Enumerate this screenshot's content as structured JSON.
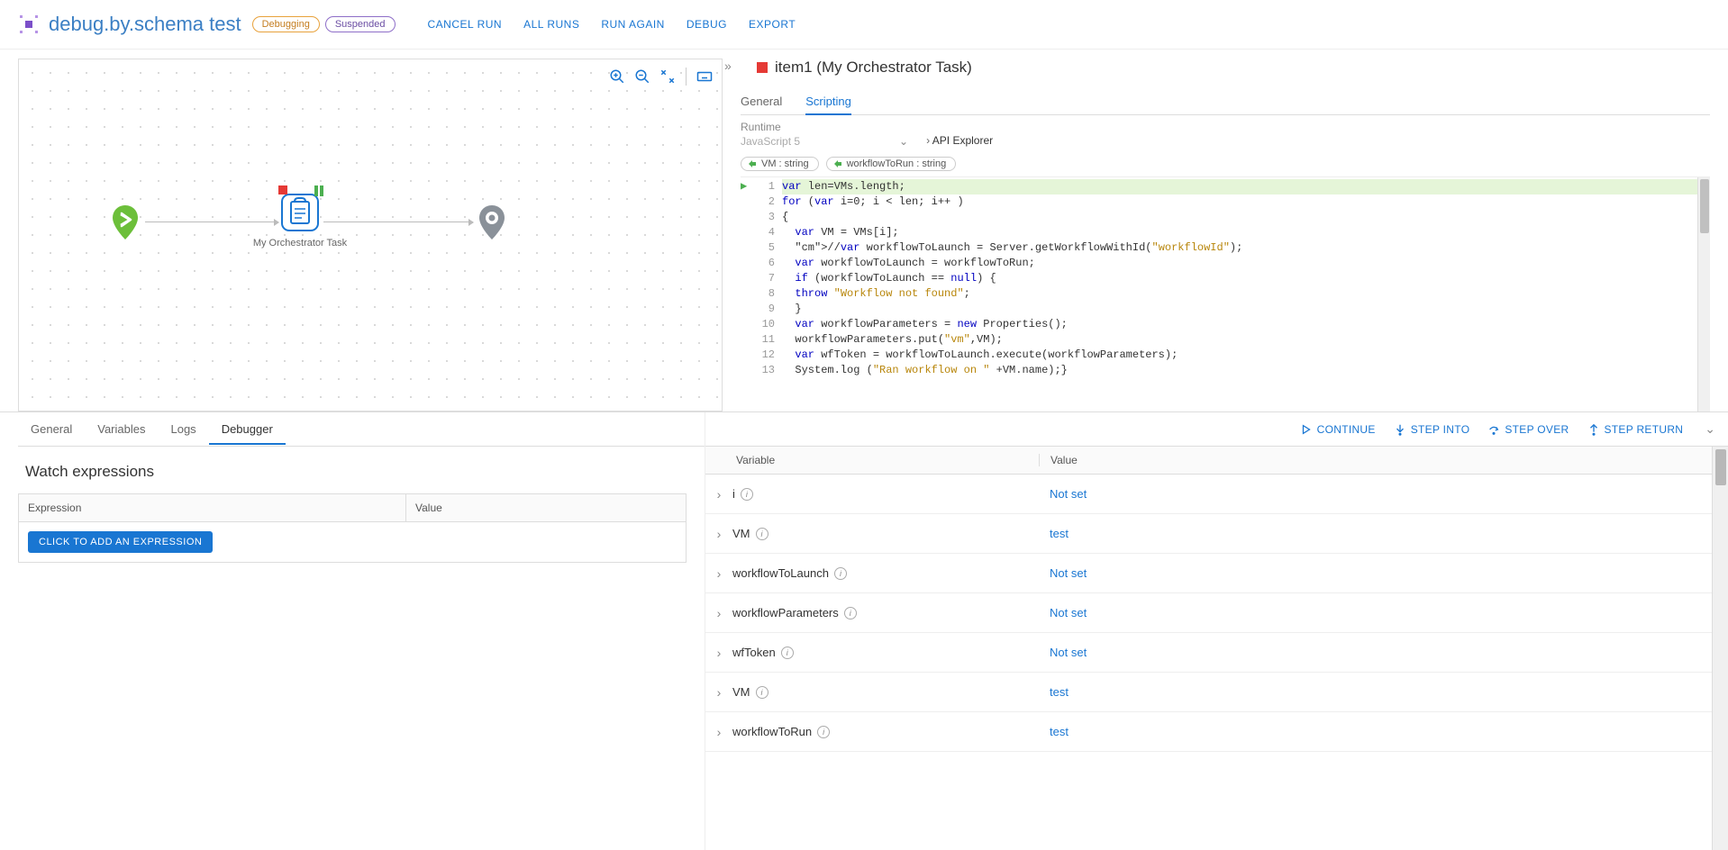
{
  "header": {
    "title": "debug.by.schema test",
    "badge_debug": "Debugging",
    "badge_susp": "Suspended",
    "nav": {
      "cancel": "CANCEL RUN",
      "allruns": "ALL RUNS",
      "runagain": "RUN AGAIN",
      "debug": "DEBUG",
      "export": "EXPORT"
    }
  },
  "canvas": {
    "task_label": "My Orchestrator Task"
  },
  "detail": {
    "item_title": "item1 (My Orchestrator Task)",
    "tabs": {
      "general": "General",
      "scripting": "Scripting"
    },
    "runtime_label": "Runtime",
    "runtime_value": "JavaScript 5",
    "api_explorer": "API Explorer",
    "pills": {
      "vm": "VM : string",
      "wf": "workflowToRun : string"
    }
  },
  "code": {
    "lines": [
      {
        "n": 1,
        "hl": true,
        "t": "var len=VMs.length;"
      },
      {
        "n": 2,
        "t": "for (var i=0; i < len; i++ )"
      },
      {
        "n": 3,
        "t": "{"
      },
      {
        "n": 4,
        "t": "  var VM = VMs[i];"
      },
      {
        "n": 5,
        "t": "  //var workflowToLaunch = Server.getWorkflowWithId(\"workflowId\");"
      },
      {
        "n": 6,
        "t": "  var workflowToLaunch = workflowToRun;"
      },
      {
        "n": 7,
        "t": "  if (workflowToLaunch == null) {"
      },
      {
        "n": 8,
        "t": "  throw \"Workflow not found\";"
      },
      {
        "n": 9,
        "t": "  }"
      },
      {
        "n": 10,
        "t": "  var workflowParameters = new Properties();"
      },
      {
        "n": 11,
        "t": "  workflowParameters.put(\"vm\",VM);"
      },
      {
        "n": 12,
        "t": "  var wfToken = workflowToLaunch.execute(workflowParameters);"
      },
      {
        "n": 13,
        "t": "  System.log (\"Ran workflow on \" +VM.name);}"
      }
    ]
  },
  "bottom_tabs": {
    "general": "General",
    "variables": "Variables",
    "logs": "Logs",
    "debugger": "Debugger"
  },
  "watch": {
    "title": "Watch expressions",
    "col_expr": "Expression",
    "col_val": "Value",
    "add_btn": "CLICK TO ADD AN EXPRESSION"
  },
  "debug_actions": {
    "continue": "CONTINUE",
    "stepinto": "STEP INTO",
    "stepover": "STEP OVER",
    "stepreturn": "STEP RETURN"
  },
  "vars": {
    "col_var": "Variable",
    "col_val": "Value",
    "rows": [
      {
        "name": "i",
        "value": "Not set"
      },
      {
        "name": "VM",
        "value": "test"
      },
      {
        "name": "workflowToLaunch",
        "value": "Not set"
      },
      {
        "name": "workflowParameters",
        "value": "Not set"
      },
      {
        "name": "wfToken",
        "value": "Not set"
      },
      {
        "name": "VM",
        "value": "test"
      },
      {
        "name": "workflowToRun",
        "value": "test"
      }
    ]
  }
}
